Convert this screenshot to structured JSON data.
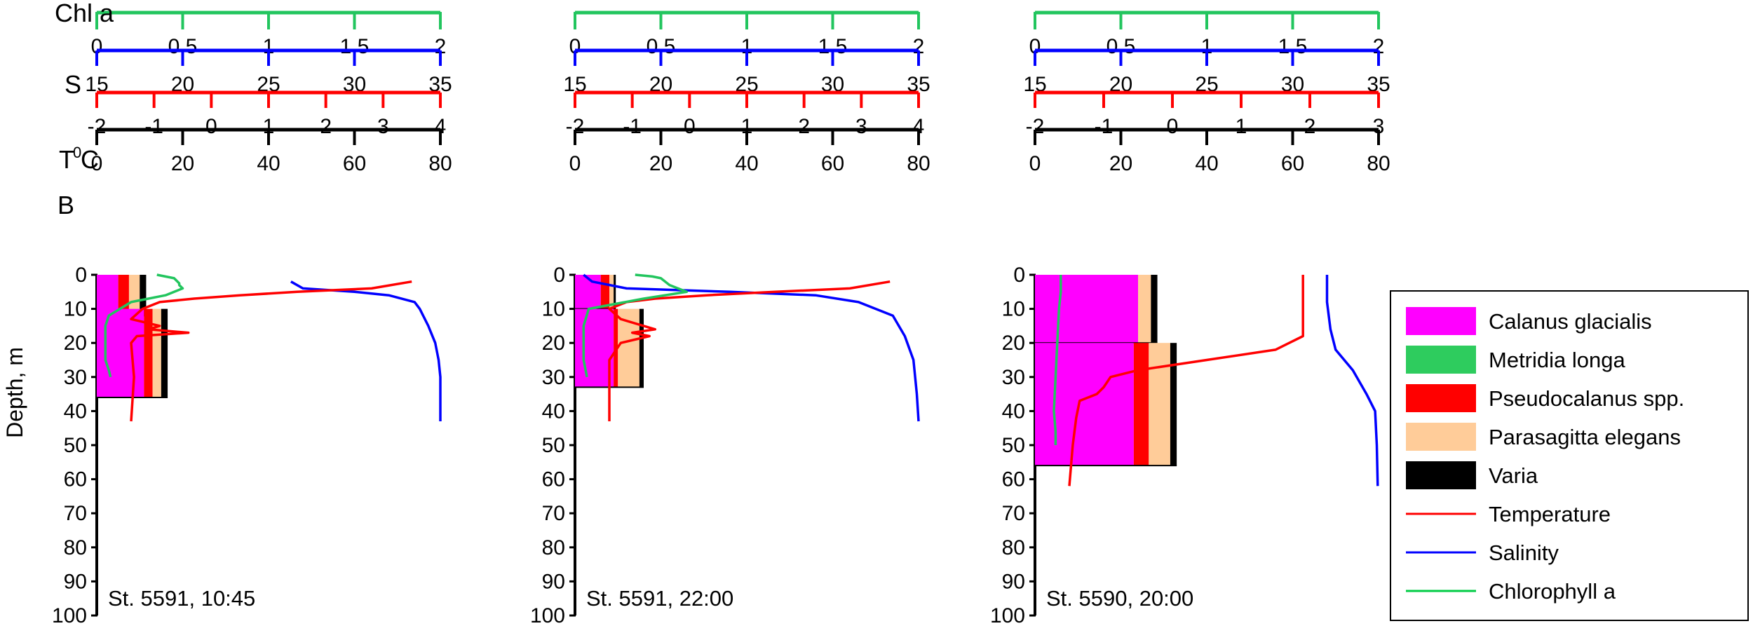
{
  "figure": {
    "row_labels": {
      "chl": "Chl a",
      "s": "S",
      "t": "T",
      "t_sup": "0",
      "t_unit": "C",
      "b": "B"
    },
    "depth_label": "Depth, m",
    "depth_ticks": [
      "0",
      "10",
      "20",
      "30",
      "40",
      "50",
      "60",
      "70",
      "80",
      "90",
      "100"
    ]
  },
  "legend": {
    "items": [
      {
        "label": "Calanus glacialis",
        "type": "box",
        "color": "#ff00ff"
      },
      {
        "label": "Metridia longa",
        "type": "box",
        "color": "#2ecc5e"
      },
      {
        "label": "Pseudocalanus spp.",
        "type": "box",
        "color": "#ff0000"
      },
      {
        "label": "Parasagitta elegans",
        "type": "box",
        "color": "#ffcc99"
      },
      {
        "label": "Varia",
        "type": "box",
        "color": "#000000"
      },
      {
        "label": "Temperature",
        "type": "line",
        "color": "#ff0000"
      },
      {
        "label": "Salinity",
        "type": "line",
        "color": "#0000ff"
      },
      {
        "label": "Chlorophyll a",
        "type": "line",
        "color": "#00cc44"
      }
    ]
  },
  "colors": {
    "chl": "#22c55e",
    "salinity": "#0000ff",
    "temperature": "#ff0000",
    "biomass": "#000000",
    "calanus": "#ff00ff",
    "metridia": "#2ecc5e",
    "pseudocalanus": "#ff0000",
    "parasagitta": "#ffcc99",
    "varia": "#000000"
  },
  "chart_data": [
    {
      "type": "area",
      "station_label": "St. 5591, 10:45",
      "axes": {
        "chl": {
          "min": 0,
          "max": 2,
          "ticks": [
            "0",
            "0.5",
            "1",
            "1.5",
            "2"
          ]
        },
        "salinity": {
          "min": 15,
          "max": 35,
          "ticks": [
            "15",
            "20",
            "25",
            "30",
            "35"
          ]
        },
        "temperature": {
          "min": -2,
          "max": 4,
          "ticks": [
            "-2",
            "-1",
            "0",
            "1",
            "2",
            "3",
            "4"
          ]
        },
        "biomass": {
          "min": 0,
          "max": 80,
          "ticks": [
            "0",
            "20",
            "40",
            "60",
            "80"
          ]
        },
        "depth": {
          "min": 0,
          "max": 100
        }
      },
      "biomass_layers": [
        {
          "depth_top": 0,
          "depth_bottom": 12,
          "segments": [
            {
              "taxon": "calanus",
              "value": 5
            },
            {
              "taxon": "metridia",
              "value": 0
            },
            {
              "taxon": "pseudocalanus",
              "value": 2.5
            },
            {
              "taxon": "parasagitta",
              "value": 2.5
            },
            {
              "taxon": "varia",
              "value": 1.5
            }
          ]
        },
        {
          "depth_top": 10,
          "depth_bottom": 36,
          "segments": [
            {
              "taxon": "calanus",
              "value": 11
            },
            {
              "taxon": "metridia",
              "value": 0
            },
            {
              "taxon": "pseudocalanus",
              "value": 2
            },
            {
              "taxon": "parasagitta",
              "value": 2
            },
            {
              "taxon": "varia",
              "value": 1.5
            }
          ]
        }
      ],
      "temperature": [
        [
          3.5,
          2
        ],
        [
          2.8,
          4
        ],
        [
          1.5,
          5
        ],
        [
          0.5,
          6
        ],
        [
          -0.3,
          7
        ],
        [
          -0.9,
          8
        ],
        [
          -1.2,
          10
        ],
        [
          -1.4,
          13
        ],
        [
          -0.9,
          15
        ],
        [
          -1.1,
          16
        ],
        [
          -0.4,
          17
        ],
        [
          -1.3,
          18
        ],
        [
          -1.4,
          20
        ],
        [
          -1.35,
          30
        ],
        [
          -1.4,
          43
        ]
      ],
      "salinity": [
        [
          26.3,
          2
        ],
        [
          27,
          4
        ],
        [
          30,
          5
        ],
        [
          32,
          6
        ],
        [
          33.5,
          8
        ],
        [
          33.8,
          10
        ],
        [
          34,
          12
        ],
        [
          34.3,
          15
        ],
        [
          34.7,
          20
        ],
        [
          34.9,
          25
        ],
        [
          35,
          30
        ],
        [
          35,
          43
        ]
      ],
      "chlorophyll": [
        [
          0.35,
          0
        ],
        [
          0.45,
          1
        ],
        [
          0.48,
          2.5
        ],
        [
          0.48,
          3
        ],
        [
          0.5,
          4
        ],
        [
          0.4,
          6
        ],
        [
          0.2,
          8
        ],
        [
          0.07,
          12
        ],
        [
          0.05,
          15
        ],
        [
          0.05,
          20
        ],
        [
          0.05,
          25
        ],
        [
          0.07,
          28
        ],
        [
          0.08,
          30
        ]
      ]
    },
    {
      "type": "area",
      "station_label": "St. 5591, 22:00",
      "axes": {
        "chl": {
          "min": 0,
          "max": 2,
          "ticks": [
            "0",
            "0.5",
            "1",
            "1.5",
            "2"
          ]
        },
        "salinity": {
          "min": 15,
          "max": 35,
          "ticks": [
            "15",
            "20",
            "25",
            "30",
            "35"
          ]
        },
        "temperature": {
          "min": -2,
          "max": 4,
          "ticks": [
            "-2",
            "-1",
            "0",
            "1",
            "2",
            "3",
            "4"
          ]
        },
        "biomass": {
          "min": 0,
          "max": 80,
          "ticks": [
            "0",
            "20",
            "40",
            "60",
            "80"
          ]
        },
        "depth": {
          "min": 0,
          "max": 100
        }
      },
      "biomass_layers": [
        {
          "depth_top": 0,
          "depth_bottom": 10,
          "segments": [
            {
              "taxon": "calanus",
              "value": 6
            },
            {
              "taxon": "metridia",
              "value": 0
            },
            {
              "taxon": "pseudocalanus",
              "value": 2
            },
            {
              "taxon": "parasagitta",
              "value": 1
            },
            {
              "taxon": "varia",
              "value": 0.5
            }
          ]
        },
        {
          "depth_top": 10,
          "depth_bottom": 33,
          "segments": [
            {
              "taxon": "calanus",
              "value": 9
            },
            {
              "taxon": "metridia",
              "value": 0
            },
            {
              "taxon": "pseudocalanus",
              "value": 1
            },
            {
              "taxon": "parasagitta",
              "value": 5
            },
            {
              "taxon": "varia",
              "value": 1
            }
          ]
        }
      ],
      "temperature": [
        [
          3.5,
          2
        ],
        [
          2.8,
          4
        ],
        [
          1.5,
          5
        ],
        [
          0.3,
          6
        ],
        [
          -0.6,
          7
        ],
        [
          -1.1,
          8
        ],
        [
          -1.4,
          10
        ],
        [
          -1.2,
          13
        ],
        [
          -0.6,
          16
        ],
        [
          -1.0,
          17
        ],
        [
          -0.7,
          18
        ],
        [
          -1.2,
          20
        ],
        [
          -1.4,
          25
        ],
        [
          -1.4,
          35
        ],
        [
          -1.4,
          43
        ]
      ],
      "salinity": [
        [
          15.5,
          0
        ],
        [
          16,
          2
        ],
        [
          18,
          4
        ],
        [
          24,
          5
        ],
        [
          29,
          6
        ],
        [
          31.5,
          8
        ],
        [
          33.5,
          12
        ],
        [
          34.2,
          18
        ],
        [
          34.7,
          25
        ],
        [
          34.9,
          35
        ],
        [
          35,
          43
        ]
      ],
      "chlorophyll": [
        [
          0.35,
          0
        ],
        [
          0.45,
          0.5
        ],
        [
          0.5,
          1
        ],
        [
          0.55,
          3
        ],
        [
          0.65,
          5
        ],
        [
          0.4,
          7
        ],
        [
          0.08,
          10
        ],
        [
          0.05,
          15
        ],
        [
          0.05,
          20
        ],
        [
          0.05,
          25
        ],
        [
          0.07,
          30
        ]
      ]
    },
    {
      "type": "area",
      "station_label": "St. 5590, 20:00",
      "axes": {
        "chl": {
          "min": 0,
          "max": 2,
          "ticks": [
            "0",
            "0.5",
            "1",
            "1.5",
            "2"
          ]
        },
        "salinity": {
          "min": 15,
          "max": 35,
          "ticks": [
            "15",
            "20",
            "25",
            "30",
            "35"
          ]
        },
        "temperature": {
          "min": -2,
          "max": 3,
          "ticks": [
            "-2",
            "-1",
            "0",
            "1",
            "2",
            "3"
          ]
        },
        "biomass": {
          "min": 0,
          "max": 80,
          "ticks": [
            "0",
            "20",
            "40",
            "60",
            "80"
          ]
        },
        "depth": {
          "min": 0,
          "max": 100
        }
      },
      "biomass_layers": [
        {
          "depth_top": 0,
          "depth_bottom": 20,
          "segments": [
            {
              "taxon": "calanus",
              "value": 24
            },
            {
              "taxon": "metridia",
              "value": 0
            },
            {
              "taxon": "pseudocalanus",
              "value": 0
            },
            {
              "taxon": "parasagitta",
              "value": 3
            },
            {
              "taxon": "varia",
              "value": 1.5
            }
          ]
        },
        {
          "depth_top": 20,
          "depth_bottom": 56,
          "segments": [
            {
              "taxon": "calanus",
              "value": 23
            },
            {
              "taxon": "metridia",
              "value": 0
            },
            {
              "taxon": "pseudocalanus",
              "value": 3.5
            },
            {
              "taxon": "parasagitta",
              "value": 5
            },
            {
              "taxon": "varia",
              "value": 1.5
            }
          ]
        }
      ],
      "temperature": [
        [
          1.9,
          0
        ],
        [
          1.9,
          10
        ],
        [
          1.9,
          18
        ],
        [
          1.7,
          20
        ],
        [
          1.5,
          22
        ],
        [
          0.5,
          25
        ],
        [
          -0.5,
          28
        ],
        [
          -0.9,
          30
        ],
        [
          -1.0,
          33
        ],
        [
          -1.1,
          35
        ],
        [
          -1.35,
          37
        ],
        [
          -1.4,
          42
        ],
        [
          -1.45,
          50
        ],
        [
          -1.5,
          62
        ]
      ],
      "salinity": [
        [
          32,
          0
        ],
        [
          32,
          8
        ],
        [
          32.2,
          16
        ],
        [
          32.5,
          22
        ],
        [
          33.5,
          28
        ],
        [
          34.3,
          35
        ],
        [
          34.8,
          40
        ],
        [
          34.9,
          50
        ],
        [
          34.95,
          62
        ]
      ],
      "chlorophyll": [
        [
          0.15,
          0
        ],
        [
          0.15,
          5
        ],
        [
          0.14,
          10
        ],
        [
          0.13,
          20
        ],
        [
          0.12,
          30
        ],
        [
          0.11,
          40
        ],
        [
          0.12,
          46
        ],
        [
          0.12,
          50
        ]
      ]
    }
  ]
}
